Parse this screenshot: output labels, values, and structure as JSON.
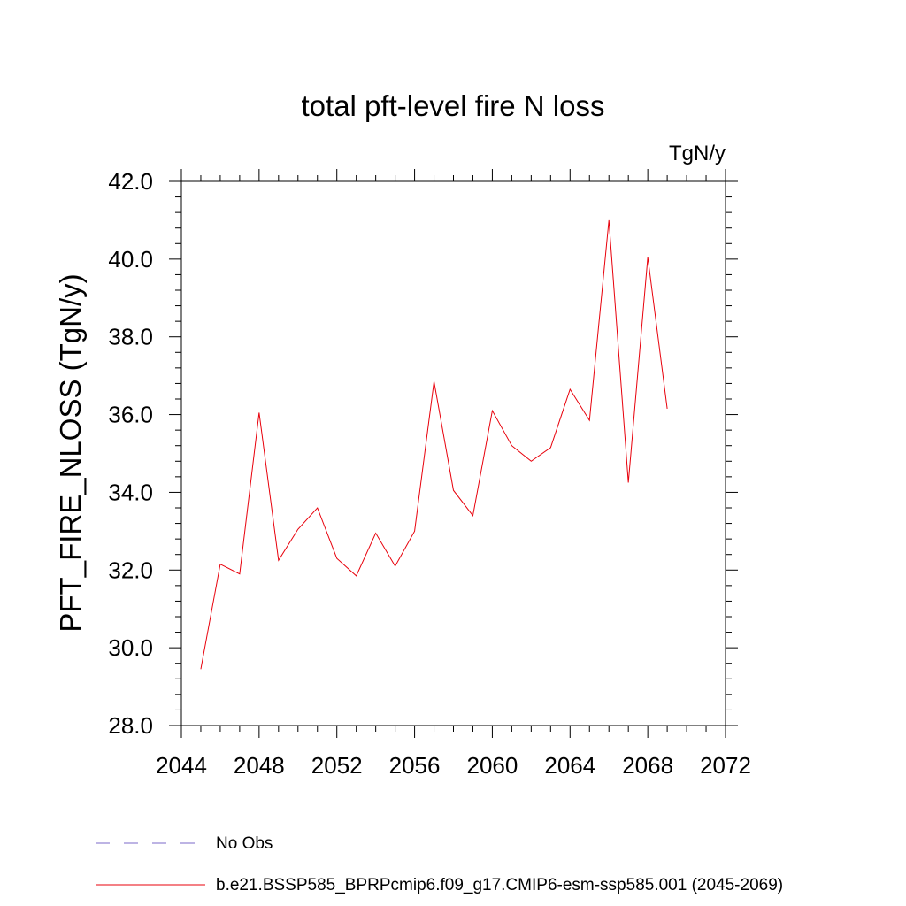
{
  "chart_data": {
    "type": "line",
    "title": "total pft-level fire N loss",
    "units_label": "TgN/y",
    "ylabel": "PFT_FIRE_NLOSS  (TgN/y)",
    "xlabel": "",
    "xlim": [
      2044,
      2072
    ],
    "ylim": [
      28.0,
      42.0
    ],
    "x_ticks": [
      "2044",
      "2048",
      "2052",
      "2056",
      "2060",
      "2064",
      "2068",
      "2072"
    ],
    "y_ticks": [
      "28.0",
      "30.0",
      "32.0",
      "34.0",
      "36.0",
      "38.0",
      "40.0",
      "42.0"
    ],
    "grid": false,
    "legend_position": "bottom-left",
    "colors": {
      "model": "#e8000b",
      "obs": "#7b68c8"
    },
    "series": [
      {
        "name": "b.e21.BSSP585_BPRPcmip6.f09_g17.CMIP6-esm-ssp585.001 (2045-2069)",
        "style": "solid",
        "x": [
          2045,
          2046,
          2047,
          2048,
          2049,
          2050,
          2051,
          2052,
          2053,
          2054,
          2055,
          2056,
          2057,
          2058,
          2059,
          2060,
          2061,
          2062,
          2063,
          2064,
          2065,
          2066,
          2067,
          2068,
          2069
        ],
        "values": [
          29.45,
          32.15,
          31.9,
          36.05,
          32.25,
          33.05,
          33.6,
          32.3,
          31.85,
          32.95,
          32.1,
          33.0,
          36.85,
          34.05,
          33.4,
          36.1,
          35.2,
          34.8,
          35.15,
          36.65,
          35.85,
          41.0,
          34.25,
          40.05,
          36.15
        ]
      },
      {
        "name": "No Obs",
        "style": "dashed",
        "x": [],
        "values": []
      }
    ]
  }
}
